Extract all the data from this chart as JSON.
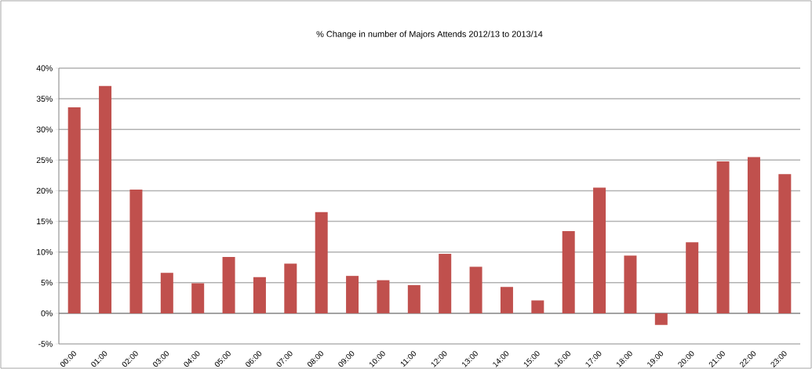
{
  "chart_data": {
    "type": "bar",
    "title": "% Change in number of Majors Attends 2012/13 to 2013/14",
    "categories": [
      "00:00",
      "01:00",
      "02:00",
      "03:00",
      "04:00",
      "05:00",
      "06:00",
      "07:00",
      "08:00",
      "09:00",
      "10:00",
      "11:00",
      "12:00",
      "13:00",
      "14:00",
      "15:00",
      "16:00",
      "17:00",
      "18:00",
      "19:00",
      "20:00",
      "21:00",
      "22:00",
      "23:00"
    ],
    "values": [
      33.6,
      37.1,
      20.2,
      6.6,
      4.9,
      9.2,
      5.9,
      8.1,
      16.5,
      6.1,
      5.4,
      4.6,
      9.7,
      7.6,
      4.3,
      2.1,
      13.4,
      20.5,
      9.4,
      -1.9,
      11.6,
      24.8,
      25.5,
      22.7
    ],
    "color": "#c0504d",
    "ylim": [
      -5,
      40
    ],
    "yticks": [
      {
        "value": -5,
        "label": "-5%"
      },
      {
        "value": 0,
        "label": "0%"
      },
      {
        "value": 5,
        "label": "5%"
      },
      {
        "value": 10,
        "label": "10%"
      },
      {
        "value": 15,
        "label": "15%"
      },
      {
        "value": 20,
        "label": "20%"
      },
      {
        "value": 25,
        "label": "25%"
      },
      {
        "value": 30,
        "label": "30%"
      },
      {
        "value": 35,
        "label": "35%"
      },
      {
        "value": 40,
        "label": "40%"
      }
    ],
    "grid": "y"
  }
}
